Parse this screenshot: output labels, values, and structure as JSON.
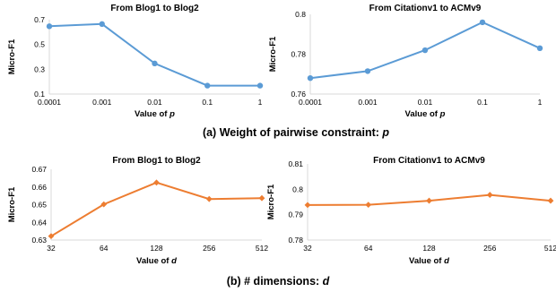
{
  "chart_data": [
    {
      "type": "line",
      "title": "From Blog1 to Blog2",
      "xlabel_prefix": "Value of ",
      "xlabel_var": "p",
      "ylabel": "Micro-F1",
      "categories": [
        "0.0001",
        "0.001",
        "0.01",
        "0.1",
        "1"
      ],
      "yticks": [
        "0.1",
        "0.3",
        "0.5",
        "0.7"
      ],
      "ylim": [
        0.1,
        0.7
      ],
      "color": "#5b9bd5",
      "marker": "circle",
      "series": [
        {
          "values": [
            0.647,
            0.665,
            0.347,
            0.168,
            0.168
          ]
        }
      ]
    },
    {
      "type": "line",
      "title": "From Citationv1 to ACMv9",
      "xlabel_prefix": "Value of ",
      "xlabel_var": "p",
      "ylabel": "Micro-F1",
      "categories": [
        "0.0001",
        "0.001",
        "0.01",
        "0.1",
        "1"
      ],
      "yticks": [
        "0.76",
        "0.78",
        "0.8"
      ],
      "ylim": [
        0.76,
        0.8
      ],
      "color": "#5b9bd5",
      "marker": "circle",
      "series": [
        {
          "values": [
            0.768,
            0.7715,
            0.782,
            0.796,
            0.783
          ]
        }
      ]
    },
    {
      "type": "line",
      "title": "From Blog1 to Blog2",
      "xlabel_prefix": "Value of ",
      "xlabel_var": "d",
      "ylabel": "Micro-F1",
      "categories": [
        "32",
        "64",
        "128",
        "256",
        "512"
      ],
      "yticks": [
        "0.63",
        "0.64",
        "0.65",
        "0.66",
        "0.67"
      ],
      "ylim": [
        0.63,
        0.67
      ],
      "color": "#ed7d31",
      "marker": "diamond",
      "series": [
        {
          "values": [
            0.6322,
            0.6502,
            0.6625,
            0.6532,
            0.6537
          ]
        }
      ]
    },
    {
      "type": "line",
      "title": "From Citationv1 to ACMv9",
      "xlabel_prefix": "Value of ",
      "xlabel_var": "d",
      "ylabel": "Micro-F1",
      "categories": [
        "32",
        "64",
        "128",
        "256",
        "512"
      ],
      "yticks": [
        "0.78",
        "0.79",
        "0.8",
        "0.81"
      ],
      "ylim": [
        0.78,
        0.81
      ],
      "color": "#ed7d31",
      "marker": "diamond",
      "series": [
        {
          "values": [
            0.7938,
            0.7939,
            0.7955,
            0.7978,
            0.7955
          ]
        }
      ]
    }
  ],
  "captions": [
    {
      "prefix": "(a) Weight of pairwise constraint: ",
      "var": "p"
    },
    {
      "prefix": "(b) # dimensions: ",
      "var": "d"
    }
  ]
}
